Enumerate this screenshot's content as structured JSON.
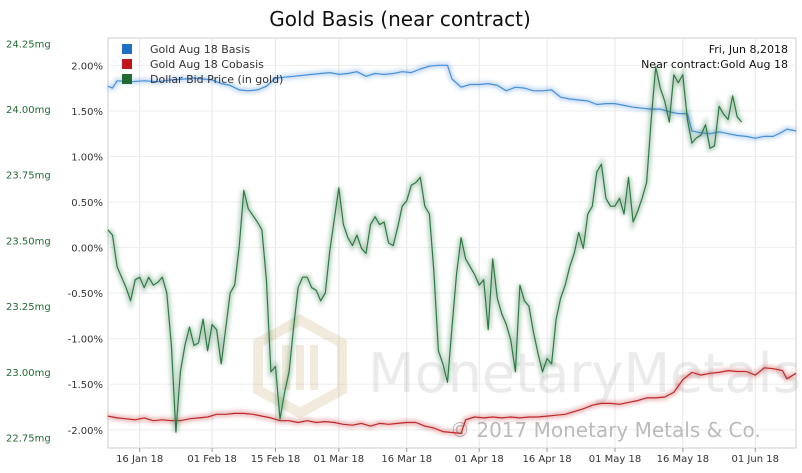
{
  "chart_data": {
    "type": "line",
    "title": "Gold Basis (near contract)",
    "annotation_date": "Fri, Jun 8,2018",
    "annotation_contract": "Near contract:Gold Aug 18",
    "watermark_brand": "MonetaryMetals",
    "watermark_copyright": "© 2017 Monetary Metals & Co.",
    "x_tick_labels": [
      "16 Jan 18",
      "01 Feb 18",
      "15 Feb 18",
      "01 Mar 18",
      "16 Mar 18",
      "01 Apr 18",
      "16 Apr 18",
      "01 May 18",
      "16 May 18",
      "01 Jun 18"
    ],
    "x_tick_offsets": [
      7,
      23,
      37,
      51,
      66,
      82,
      97,
      112,
      127,
      143
    ],
    "x_range": [
      0,
      152
    ],
    "left_axis": {
      "ticks": [
        "2.00%",
        "1.50%",
        "1.00%",
        "0.50%",
        "0.00%",
        "-0.50%",
        "-1.00%",
        "-1.50%",
        "-2.00%"
      ],
      "tick_values": [
        2.0,
        1.5,
        1.0,
        0.5,
        0.0,
        -0.5,
        -1.0,
        -1.5,
        -2.0
      ],
      "range": [
        -2.2,
        2.3
      ]
    },
    "right_axis": {
      "ticks": [
        "24.25mg",
        "24.00mg",
        "23.75mg",
        "23.50mg",
        "23.25mg",
        "23.00mg",
        "22.75mg"
      ],
      "tick_values": [
        24.25,
        24.0,
        23.75,
        23.5,
        23.25,
        23.0,
        22.75
      ],
      "range": [
        22.71,
        24.27
      ]
    },
    "series": [
      {
        "name": "Gold Aug 18 Basis",
        "color": "#4a90d9",
        "axis": "left",
        "points": [
          [
            0,
            1.77
          ],
          [
            1,
            1.75
          ],
          [
            2,
            1.83
          ],
          [
            5,
            1.82
          ],
          [
            8,
            1.83
          ],
          [
            11,
            1.82
          ],
          [
            14,
            1.84
          ],
          [
            17,
            1.85
          ],
          [
            19,
            1.86
          ],
          [
            21,
            1.85
          ],
          [
            23,
            1.84
          ],
          [
            25,
            1.8
          ],
          [
            27,
            1.78
          ],
          [
            29,
            1.73
          ],
          [
            31,
            1.72
          ],
          [
            33,
            1.73
          ],
          [
            35,
            1.77
          ],
          [
            37,
            1.86
          ],
          [
            39,
            1.87
          ],
          [
            41,
            1.88
          ],
          [
            43,
            1.89
          ],
          [
            45,
            1.9
          ],
          [
            47,
            1.91
          ],
          [
            49,
            1.92
          ],
          [
            51,
            1.9
          ],
          [
            53,
            1.91
          ],
          [
            55,
            1.93
          ],
          [
            57,
            1.88
          ],
          [
            59,
            1.91
          ],
          [
            61,
            1.9
          ],
          [
            63,
            1.91
          ],
          [
            65,
            1.93
          ],
          [
            67,
            1.92
          ],
          [
            69,
            1.96
          ],
          [
            71,
            1.99
          ],
          [
            73,
            2.0
          ],
          [
            75,
            2.0
          ],
          [
            76,
            1.85
          ],
          [
            78,
            1.76
          ],
          [
            80,
            1.79
          ],
          [
            82,
            1.79
          ],
          [
            84,
            1.8
          ],
          [
            86,
            1.78
          ],
          [
            88,
            1.72
          ],
          [
            90,
            1.76
          ],
          [
            92,
            1.75
          ],
          [
            94,
            1.72
          ],
          [
            96,
            1.72
          ],
          [
            98,
            1.73
          ],
          [
            100,
            1.65
          ],
          [
            102,
            1.63
          ],
          [
            104,
            1.62
          ],
          [
            106,
            1.61
          ],
          [
            108,
            1.57
          ],
          [
            110,
            1.58
          ],
          [
            112,
            1.58
          ],
          [
            114,
            1.56
          ],
          [
            116,
            1.54
          ],
          [
            118,
            1.53
          ],
          [
            120,
            1.52
          ],
          [
            122,
            1.52
          ],
          [
            124,
            1.49
          ],
          [
            126,
            1.47
          ],
          [
            128,
            1.47
          ],
          [
            129,
            1.28
          ],
          [
            131,
            1.26
          ],
          [
            133,
            1.25
          ],
          [
            135,
            1.27
          ],
          [
            137,
            1.25
          ],
          [
            139,
            1.23
          ],
          [
            141,
            1.22
          ],
          [
            143,
            1.2
          ],
          [
            145,
            1.22
          ],
          [
            147,
            1.22
          ],
          [
            149,
            1.27
          ],
          [
            150,
            1.3
          ],
          [
            152,
            1.28
          ]
        ]
      },
      {
        "name": "Gold Aug 18 Cobasis",
        "color": "#c0292b",
        "axis": "left",
        "points": [
          [
            0,
            -1.85
          ],
          [
            2,
            -1.87
          ],
          [
            4,
            -1.88
          ],
          [
            6,
            -1.89
          ],
          [
            8,
            -1.87
          ],
          [
            10,
            -1.9
          ],
          [
            12,
            -1.89
          ],
          [
            14,
            -1.9
          ],
          [
            16,
            -1.9
          ],
          [
            18,
            -1.88
          ],
          [
            20,
            -1.87
          ],
          [
            22,
            -1.86
          ],
          [
            24,
            -1.83
          ],
          [
            26,
            -1.83
          ],
          [
            28,
            -1.82
          ],
          [
            30,
            -1.82
          ],
          [
            32,
            -1.83
          ],
          [
            34,
            -1.85
          ],
          [
            36,
            -1.87
          ],
          [
            38,
            -1.9
          ],
          [
            40,
            -1.9
          ],
          [
            42,
            -1.92
          ],
          [
            44,
            -1.9
          ],
          [
            46,
            -1.92
          ],
          [
            48,
            -1.91
          ],
          [
            50,
            -1.92
          ],
          [
            52,
            -1.94
          ],
          [
            54,
            -1.95
          ],
          [
            56,
            -1.93
          ],
          [
            58,
            -1.96
          ],
          [
            60,
            -1.93
          ],
          [
            62,
            -1.94
          ],
          [
            64,
            -1.93
          ],
          [
            66,
            -1.92
          ],
          [
            68,
            -1.92
          ],
          [
            70,
            -1.96
          ],
          [
            72,
            -1.98
          ],
          [
            74,
            -2.02
          ],
          [
            76,
            -2.03
          ],
          [
            78,
            -2.04
          ],
          [
            79,
            -1.89
          ],
          [
            81,
            -1.86
          ],
          [
            83,
            -1.87
          ],
          [
            85,
            -1.86
          ],
          [
            87,
            -1.87
          ],
          [
            89,
            -1.86
          ],
          [
            91,
            -1.87
          ],
          [
            93,
            -1.86
          ],
          [
            95,
            -1.86
          ],
          [
            97,
            -1.85
          ],
          [
            99,
            -1.84
          ],
          [
            101,
            -1.83
          ],
          [
            103,
            -1.8
          ],
          [
            105,
            -1.77
          ],
          [
            107,
            -1.73
          ],
          [
            109,
            -1.71
          ],
          [
            111,
            -1.71
          ],
          [
            113,
            -1.72
          ],
          [
            115,
            -1.7
          ],
          [
            117,
            -1.68
          ],
          [
            119,
            -1.65
          ],
          [
            121,
            -1.65
          ],
          [
            123,
            -1.64
          ],
          [
            125,
            -1.59
          ],
          [
            127,
            -1.45
          ],
          [
            129,
            -1.37
          ],
          [
            131,
            -1.4
          ],
          [
            133,
            -1.38
          ],
          [
            135,
            -1.37
          ],
          [
            137,
            -1.35
          ],
          [
            139,
            -1.36
          ],
          [
            141,
            -1.36
          ],
          [
            143,
            -1.4
          ],
          [
            145,
            -1.32
          ],
          [
            147,
            -1.33
          ],
          [
            149,
            -1.35
          ],
          [
            150,
            -1.44
          ],
          [
            152,
            -1.38
          ]
        ]
      },
      {
        "name": "Dollar Bid Price (in gold)",
        "color": "#2f7a45",
        "axis": "right",
        "points": [
          [
            0,
            23.54
          ],
          [
            1,
            23.52
          ],
          [
            2,
            23.4
          ],
          [
            4,
            23.32
          ],
          [
            5,
            23.27
          ],
          [
            6,
            23.35
          ],
          [
            7,
            23.36
          ],
          [
            8,
            23.32
          ],
          [
            9,
            23.36
          ],
          [
            10,
            23.33
          ],
          [
            11,
            23.34
          ],
          [
            12,
            23.36
          ],
          [
            13,
            23.3
          ],
          [
            14,
            23.1
          ],
          [
            15,
            22.77
          ],
          [
            16,
            23.0
          ],
          [
            17,
            23.1
          ],
          [
            18,
            23.17
          ],
          [
            19,
            23.1
          ],
          [
            20,
            23.11
          ],
          [
            21,
            23.2
          ],
          [
            22,
            23.08
          ],
          [
            23,
            23.18
          ],
          [
            24,
            23.16
          ],
          [
            25,
            23.03
          ],
          [
            27,
            23.3
          ],
          [
            28,
            23.33
          ],
          [
            29,
            23.48
          ],
          [
            30,
            23.69
          ],
          [
            31,
            23.62
          ],
          [
            33,
            23.57
          ],
          [
            34,
            23.54
          ],
          [
            35,
            23.35
          ],
          [
            36,
            23.0
          ],
          [
            37,
            23.02
          ],
          [
            38,
            22.82
          ],
          [
            39,
            22.92
          ],
          [
            40,
            23.0
          ],
          [
            41,
            23.17
          ],
          [
            42,
            23.32
          ],
          [
            43,
            23.36
          ],
          [
            44,
            23.36
          ],
          [
            45,
            23.32
          ],
          [
            46,
            23.31
          ],
          [
            47,
            23.27
          ],
          [
            48,
            23.3
          ],
          [
            49,
            23.46
          ],
          [
            50,
            23.58
          ],
          [
            51,
            23.7
          ],
          [
            52,
            23.56
          ],
          [
            53,
            23.51
          ],
          [
            54,
            23.48
          ],
          [
            55,
            23.52
          ],
          [
            56,
            23.47
          ],
          [
            57,
            23.45
          ],
          [
            58,
            23.56
          ],
          [
            59,
            23.59
          ],
          [
            60,
            23.56
          ],
          [
            61,
            23.57
          ],
          [
            62,
            23.49
          ],
          [
            63,
            23.48
          ],
          [
            64,
            23.55
          ],
          [
            65,
            23.63
          ],
          [
            66,
            23.65
          ],
          [
            67,
            23.71
          ],
          [
            68,
            23.72
          ],
          [
            69,
            23.74
          ],
          [
            70,
            23.63
          ],
          [
            71,
            23.6
          ],
          [
            72,
            23.38
          ],
          [
            73,
            23.08
          ],
          [
            74,
            23.03
          ],
          [
            75,
            22.96
          ],
          [
            76,
            23.17
          ],
          [
            77,
            23.37
          ],
          [
            78,
            23.51
          ],
          [
            79,
            23.43
          ],
          [
            80,
            23.4
          ],
          [
            81,
            23.37
          ],
          [
            82,
            23.33
          ],
          [
            83,
            23.35
          ],
          [
            84,
            23.16
          ],
          [
            85,
            23.43
          ],
          [
            86,
            23.28
          ],
          [
            87,
            23.22
          ],
          [
            88,
            23.18
          ],
          [
            89,
            23.12
          ],
          [
            90,
            23.0
          ],
          [
            91,
            23.33
          ],
          [
            92,
            23.27
          ],
          [
            93,
            23.25
          ],
          [
            94,
            23.15
          ],
          [
            95,
            23.07
          ],
          [
            96,
            23.0
          ],
          [
            97,
            23.05
          ],
          [
            98,
            23.03
          ],
          [
            99,
            23.2
          ],
          [
            100,
            23.28
          ],
          [
            101,
            23.33
          ],
          [
            102,
            23.4
          ],
          [
            103,
            23.45
          ],
          [
            104,
            23.53
          ],
          [
            105,
            23.47
          ],
          [
            106,
            23.6
          ],
          [
            107,
            23.63
          ],
          [
            108,
            23.76
          ],
          [
            109,
            23.79
          ],
          [
            110,
            23.66
          ],
          [
            111,
            23.63
          ],
          [
            112,
            23.63
          ],
          [
            113,
            23.66
          ],
          [
            114,
            23.6
          ],
          [
            115,
            23.74
          ],
          [
            116,
            23.57
          ],
          [
            117,
            23.61
          ],
          [
            118,
            23.66
          ],
          [
            119,
            23.72
          ],
          [
            120,
            23.96
          ],
          [
            121,
            24.16
          ],
          [
            122,
            24.08
          ],
          [
            123,
            24.03
          ],
          [
            124,
            23.95
          ],
          [
            125,
            24.13
          ],
          [
            126,
            24.1
          ],
          [
            127,
            24.13
          ],
          [
            128,
            23.96
          ],
          [
            129,
            23.87
          ],
          [
            130,
            23.89
          ],
          [
            131,
            23.9
          ],
          [
            132,
            23.94
          ],
          [
            133,
            23.85
          ],
          [
            134,
            23.86
          ],
          [
            135,
            24.01
          ],
          [
            136,
            23.98
          ],
          [
            137,
            23.96
          ],
          [
            138,
            24.05
          ],
          [
            139,
            23.97
          ],
          [
            140,
            23.95
          ]
        ]
      }
    ],
    "grid": true,
    "legend_position": "top-left"
  }
}
